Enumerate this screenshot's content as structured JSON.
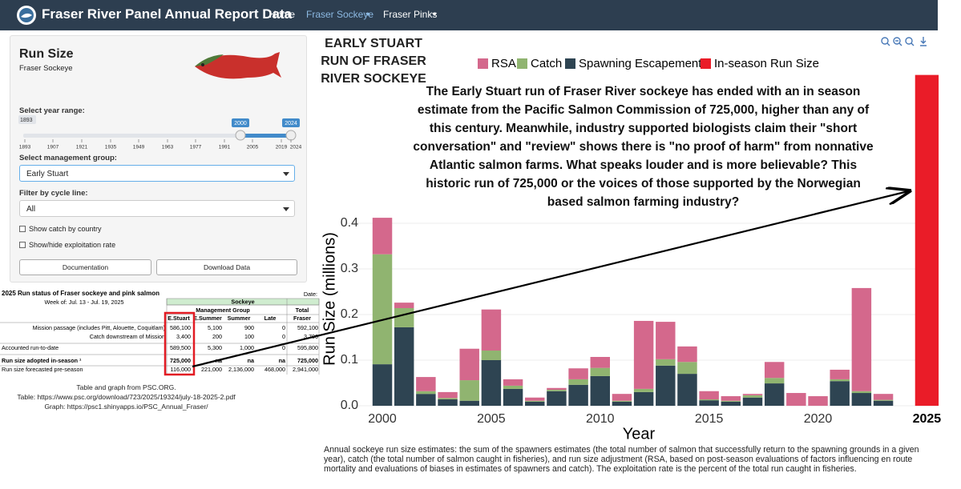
{
  "navbar": {
    "title": "Fraser River Panel Annual Report Data",
    "links": [
      "Home",
      "Fraser Sockeye",
      "Fraser Pinks"
    ]
  },
  "sidebar": {
    "title": "Run Size",
    "subtitle": "Fraser Sockeye",
    "year_range": {
      "label": "Select year range:",
      "min": "1893",
      "from": "2000",
      "to": "2024",
      "ticks": [
        "1893",
        "1907",
        "1921",
        "1935",
        "1949",
        "1963",
        "1977",
        "1991",
        "2005",
        "2019",
        "2024"
      ]
    },
    "group": {
      "label": "Select management group:",
      "value": "Early Stuart"
    },
    "cycle": {
      "label": "Filter by cycle line:",
      "value": "All"
    },
    "checkboxes": [
      "Show catch by country",
      "Show/hide exploitation rate"
    ],
    "buttons": [
      "Documentation",
      "Download Data"
    ]
  },
  "table": {
    "title": "2025 Run status of Fraser sockeye and pink salmon",
    "date_label": "Date:",
    "week": "Week of:  Jul. 13 - Jul. 19, 2025",
    "group_header": "Sockeye",
    "subheader": "Management Group",
    "total_header": "Total",
    "columns": [
      "E.Stuart",
      "E.Summer",
      "Summer",
      "Late",
      "Fraser"
    ],
    "rows": [
      {
        "label": "Mission passage (includes Pitt, Alouette, Coquitlam)",
        "cells": [
          "586,100",
          "5,100",
          "900",
          "0",
          "592,100"
        ]
      },
      {
        "label": "Catch downstream of Mission",
        "cells": [
          "3,400",
          "200",
          "100",
          "0",
          "3,700"
        ]
      },
      {
        "label": "Accounted run-to-date",
        "cells": [
          "589,500",
          "5,300",
          "1,000",
          "0",
          "595,800"
        ]
      },
      {
        "label": "Run size adopted in-season ¹",
        "cells": [
          "725,000",
          "na",
          "na",
          "na",
          "725,000"
        ]
      },
      {
        "label": "Run size forecasted pre-season",
        "cells": [
          "116,000",
          "221,000",
          "2,136,000",
          "468,000",
          "2,941,000"
        ]
      }
    ]
  },
  "credits": [
    "Table and graph from PSC.ORG.",
    "Table: https://www.psc.org/download/723/2025/19324/july-18-2025-2.pdf",
    "Graph: https://psc1.shinyapps.io/PSC_Annual_Fraser/"
  ],
  "chart_data": {
    "type": "stacked-bar",
    "title": "EARLY STUART RUN OF FRASER RIVER SOCKEYE",
    "annotation": "The Early Stuart run of Fraser River sockeye has ended with an in season estimate from the Pacific Salmon Commission of 725,000, higher than any of this century. Meanwhile, industry supported biologists claim their \"short conversation\" and \"review\" shows there is \"no proof of harm\" from nonnative Atlantic salmon farms. What speaks louder and is more believable? This historic  run of 725,000 or the voices of those supported by the Norwegian based  salmon farming industry?",
    "x_label": "Year",
    "y_label": "Run Size (millions)",
    "x": [
      2000,
      2001,
      2002,
      2003,
      2004,
      2005,
      2006,
      2007,
      2008,
      2009,
      2010,
      2011,
      2012,
      2013,
      2014,
      2015,
      2016,
      2017,
      2018,
      2019,
      2020,
      2021,
      2022,
      2023
    ],
    "series": [
      {
        "name": "RSA",
        "color": "#d4688c",
        "values": [
          0.08,
          0.012,
          0.031,
          0.013,
          0.069,
          0.09,
          0.014,
          0.007,
          0.004,
          0.024,
          0.024,
          0.015,
          0.149,
          0.082,
          0.034,
          0.018,
          0.01,
          0.003,
          0.035,
          0.028,
          0.021,
          0.021,
          0.226,
          0.013
        ]
      },
      {
        "name": "Catch",
        "color": "#90b470",
        "values": [
          0.241,
          0.042,
          0.006,
          0.003,
          0.045,
          0.021,
          0.007,
          0.002,
          0.003,
          0.012,
          0.018,
          0.002,
          0.007,
          0.014,
          0.026,
          0.002,
          0.002,
          0.005,
          0.012,
          0,
          0,
          0.004,
          0.004,
          0.002
        ]
      },
      {
        "name": "Spawning Escapement",
        "color": "#2e4452",
        "values": [
          0.091,
          0.172,
          0.026,
          0.014,
          0.011,
          0.1,
          0.037,
          0.009,
          0.032,
          0.046,
          0.065,
          0.009,
          0.03,
          0.088,
          0.07,
          0.012,
          0.009,
          0.018,
          0.049,
          0,
          0,
          0.054,
          0.028,
          0.011
        ]
      }
    ],
    "in_season": {
      "name": "In-season Run Size",
      "color": "#ea1c28",
      "x": 2025,
      "value": 0.725
    },
    "xlim": [
      1998.27,
      2025.5
    ],
    "xticks": [
      2000,
      2005,
      2010,
      2015,
      2020,
      2025
    ],
    "ylim": [
      0,
      0.784
    ],
    "yticks": [
      {
        "value": 0,
        "label": "0.0"
      },
      0.1,
      0.2,
      0.3,
      0.4
    ],
    "grid": true
  },
  "caption": "Annual sockeye run size estimates: the sum of the spawners estimates (the total number of salmon that successfully return to the spawning grounds in a given year), catch (the total number of salmon caught in fisheries), and run size adjustment (RSA, based on post-season evaluations of factors influencing en route mortality and evaluations of biases in estimates of spawners and catch). The exploitation rate is the percent of the total run caught in fisheries."
}
